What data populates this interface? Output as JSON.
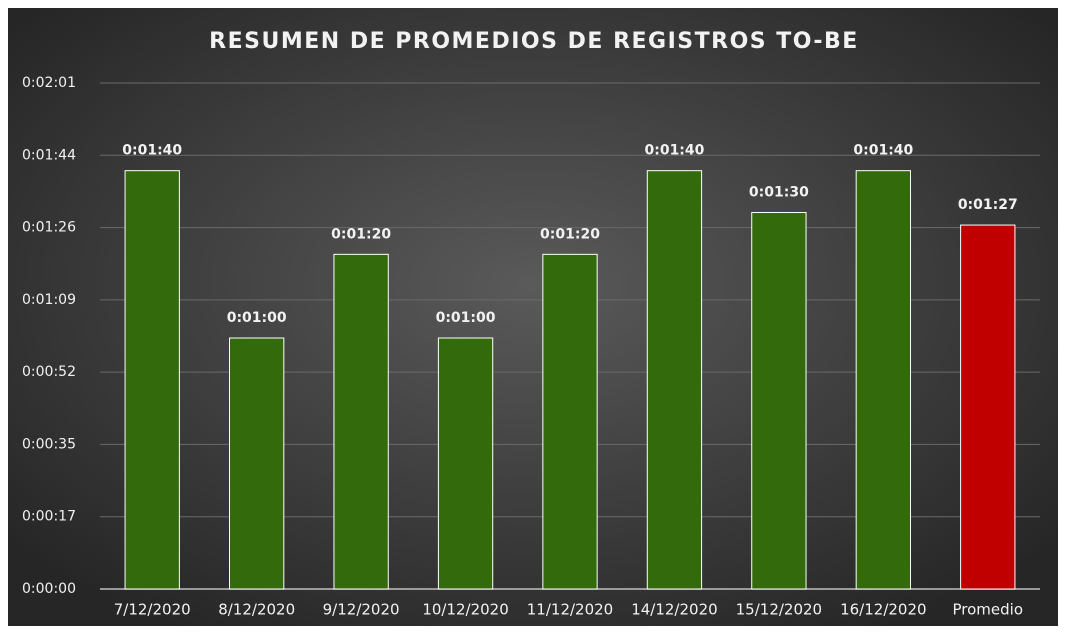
{
  "chart_data": {
    "type": "bar",
    "title": "RESUMEN DE PROMEDIOS DE REGISTROS TO-BE",
    "categories": [
      "7/12/2020",
      "8/12/2020",
      "9/12/2020",
      "10/12/2020",
      "11/12/2020",
      "14/12/2020",
      "15/12/2020",
      "16/12/2020",
      "Promedio"
    ],
    "values": [
      100,
      60,
      80,
      60,
      80,
      100,
      90,
      100,
      87
    ],
    "value_labels": [
      "0:01:40",
      "0:01:00",
      "0:01:20",
      "0:01:00",
      "0:01:20",
      "0:01:40",
      "0:01:30",
      "0:01:40",
      "0:01:27"
    ],
    "colors": [
      "#336a0c",
      "#336a0c",
      "#336a0c",
      "#336a0c",
      "#336a0c",
      "#336a0c",
      "#336a0c",
      "#336a0c",
      "#c00000"
    ],
    "ylim": [
      0,
      120.96
    ],
    "yticks": [
      {
        "value": 0,
        "label": "0:00:00"
      },
      {
        "value": 17.28,
        "label": "0:00:17"
      },
      {
        "value": 34.56,
        "label": "0:00:35"
      },
      {
        "value": 51.84,
        "label": "0:00:52"
      },
      {
        "value": 69.12,
        "label": "0:01:09"
      },
      {
        "value": 86.4,
        "label": "0:01:26"
      },
      {
        "value": 103.68,
        "label": "0:01:44"
      },
      {
        "value": 120.96,
        "label": "0:02:01"
      }
    ],
    "grid": true
  }
}
